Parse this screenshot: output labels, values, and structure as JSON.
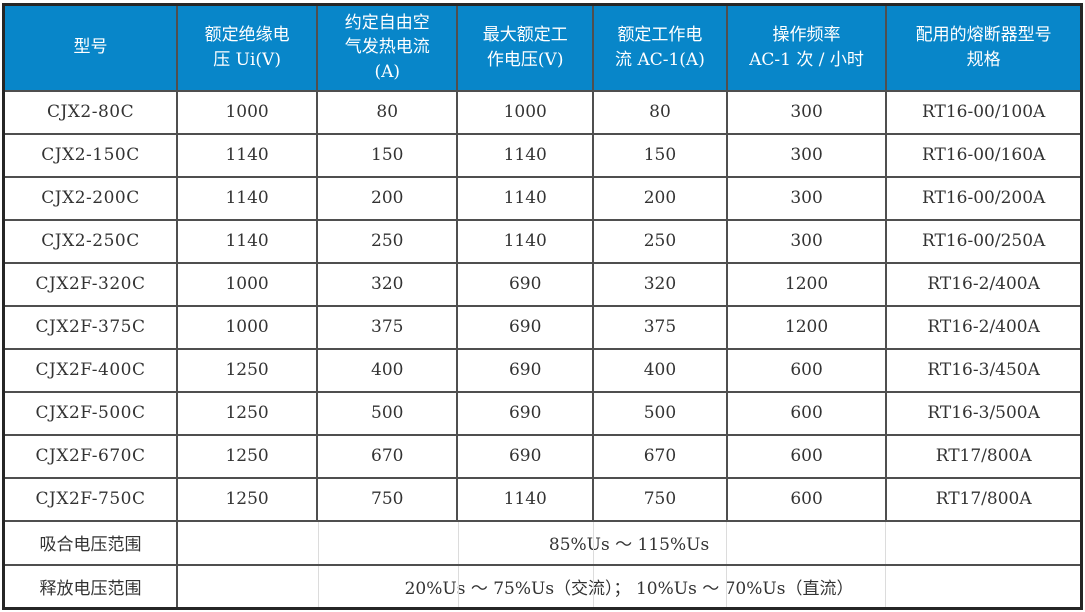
{
  "colors": {
    "header_bg": "#0886c9",
    "header_text": "#ffffff",
    "grid_border": "#4f4f4f",
    "outer_border": "#262626",
    "body_text": "#333333"
  },
  "table": {
    "columns": [
      "型号",
      "额定绝缘电\n压 Ui(V)",
      "约定自由空\n气发热电流\n(A)",
      "最大额定工\n作电压(V)",
      "额定工作电\n流 AC-1(A)",
      "操作频率\nAC-1 次 / 小时",
      "配用的熔断器型号\n规格"
    ],
    "rows": [
      [
        "CJX2-80C",
        "1000",
        "80",
        "1000",
        "80",
        "300",
        "RT16-00/100A"
      ],
      [
        "CJX2-150C",
        "1140",
        "150",
        "1140",
        "150",
        "300",
        "RT16-00/160A"
      ],
      [
        "CJX2-200C",
        "1140",
        "200",
        "1140",
        "200",
        "300",
        "RT16-00/200A"
      ],
      [
        "CJX2-250C",
        "1140",
        "250",
        "1140",
        "250",
        "300",
        "RT16-00/250A"
      ],
      [
        "CJX2F-320C",
        "1000",
        "320",
        "690",
        "320",
        "1200",
        "RT16-2/400A"
      ],
      [
        "CJX2F-375C",
        "1000",
        "375",
        "690",
        "375",
        "1200",
        "RT16-2/400A"
      ],
      [
        "CJX2F-400C",
        "1250",
        "400",
        "690",
        "400",
        "600",
        "RT16-3/450A"
      ],
      [
        "CJX2F-500C",
        "1250",
        "500",
        "690",
        "500",
        "600",
        "RT16-3/500A"
      ],
      [
        "CJX2F-670C",
        "1250",
        "670",
        "690",
        "670",
        "600",
        "RT17/800A"
      ],
      [
        "CJX2F-750C",
        "1250",
        "750",
        "1140",
        "750",
        "600",
        "RT17/800A"
      ]
    ],
    "footer_rows": [
      {
        "label": "吸合电压范围",
        "value": "85%Us ～ 115%Us"
      },
      {
        "label": "释放电压范围",
        "value": "20%Us ～ 75%Us（交流）； 10%Us ～ 70%Us（直流）"
      }
    ]
  }
}
